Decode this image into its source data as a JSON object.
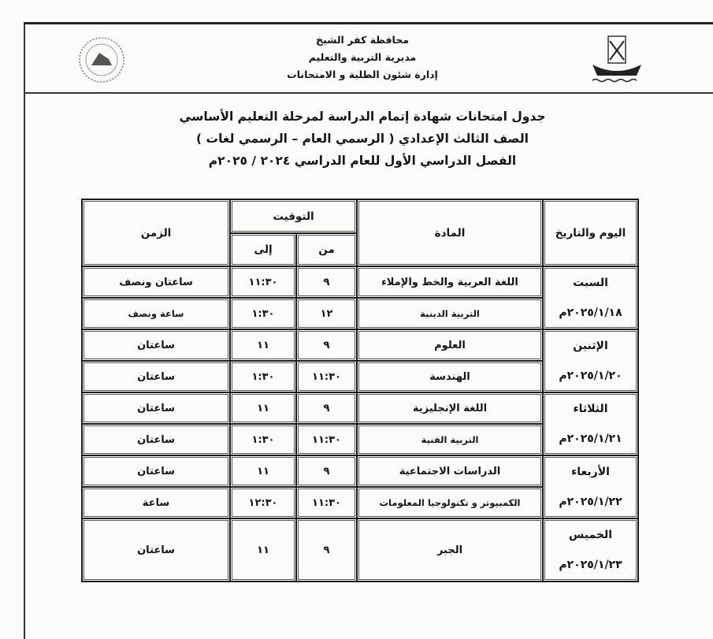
{
  "header": {
    "org_lines": [
      "محافظة كفر الشيخ",
      "مديرية التربية والتعليم",
      "إدارة شئون الطلبة و الامتحانات"
    ],
    "titles": [
      "جدول امتحانات شهادة إتمام الدراسة لمرحلة التعليم الأساسي",
      "الصف الثالث الإعدادي ( الرسمي العام – الرسمي لغات )",
      "الفصل الدراسي الأول للعام الدراسي ٢٠٢٤ / ٢٠٢٥م"
    ]
  },
  "table": {
    "headers": {
      "day_date": "اليوم والتاريخ",
      "subject": "المادة",
      "timing": "التوقيت",
      "from": "من",
      "to": "إلى",
      "duration": "الزمن"
    },
    "days": [
      {
        "day": "السبت",
        "date": "٢٠٢٥/١/١٨م",
        "exams": [
          {
            "subject": "اللغة العربية والخط والإملاء",
            "from": "٩",
            "to": "١١:٣٠",
            "duration": "ساعتان ونصف"
          },
          {
            "subject": "التربية الدينية",
            "from": "١٢",
            "to": "١:٣٠",
            "duration": "ساعة ونصف"
          }
        ]
      },
      {
        "day": "الإثنين",
        "date": "٢٠٢٥/١/٢٠م",
        "exams": [
          {
            "subject": "العلوم",
            "from": "٩",
            "to": "١١",
            "duration": "ساعتان"
          },
          {
            "subject": "الهندسة",
            "from": "١١:٣٠",
            "to": "١:٣٠",
            "duration": "ساعتان"
          }
        ]
      },
      {
        "day": "الثلاثاء",
        "date": "٢٠٢٥/١/٢١م",
        "exams": [
          {
            "subject": "اللغة الإنجليزية",
            "from": "٩",
            "to": "١١",
            "duration": "ساعتان"
          },
          {
            "subject": "التربية الفنية",
            "from": "١١:٣٠",
            "to": "١:٣٠",
            "duration": "ساعتان"
          }
        ]
      },
      {
        "day": "الأربعاء",
        "date": "٢٠٢٥/١/٢٢م",
        "exams": [
          {
            "subject": "الدراسات الاجتماعية",
            "from": "٩",
            "to": "١١",
            "duration": "ساعتان"
          },
          {
            "subject": "الكمبيوتر و تكنولوجيا المعلومات",
            "from": "١١:٣٠",
            "to": "١٢:٣٠",
            "duration": "ساعة"
          }
        ]
      },
      {
        "day": "الخميس",
        "date": "٢٠٢٥/١/٢٣م",
        "exams": [
          {
            "subject": "الجبر",
            "from": "٩",
            "to": "١١",
            "duration": "ساعتان"
          }
        ]
      }
    ]
  }
}
